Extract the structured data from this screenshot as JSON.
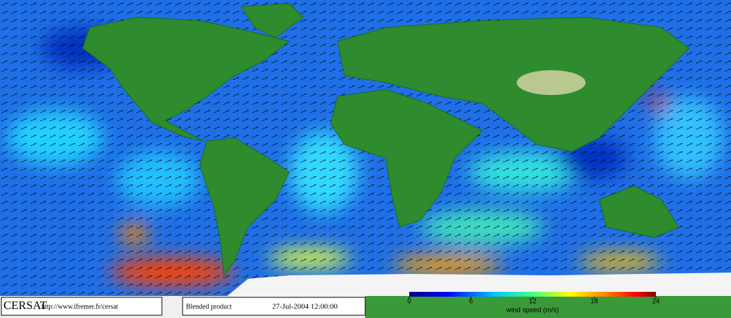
{
  "footer": {
    "logo": "CERSAT",
    "url": "http://www.ifremer.fr/cersat",
    "product": "Blended product",
    "date": "27-Jul-2004 12:00:00"
  },
  "colorbar": {
    "range": [
      0,
      24
    ],
    "ticks": [
      0,
      6,
      12,
      18,
      24
    ],
    "label": "wind speed (m/s)"
  }
}
